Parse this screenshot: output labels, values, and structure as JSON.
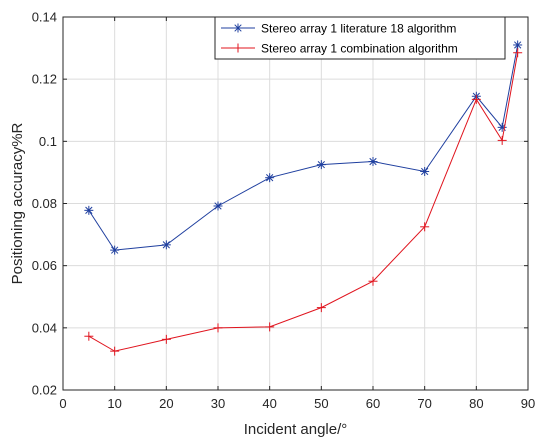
{
  "chart_data": {
    "type": "line",
    "xlabel": "Incident angle/°",
    "ylabel": "Positioning accuracy%R",
    "xlim": [
      0,
      90
    ],
    "ylim": [
      0.02,
      0.14
    ],
    "xticks": [
      "0",
      "10",
      "20",
      "30",
      "40",
      "50",
      "60",
      "70",
      "80",
      "90"
    ],
    "yticks": [
      "0.02",
      "0.04",
      "0.06",
      "0.08",
      "0.1",
      "0.12",
      "0.14"
    ],
    "grid": true,
    "legend_position": "top-right",
    "x": [
      5,
      10,
      20,
      30,
      40,
      50,
      60,
      70,
      80,
      85,
      88
    ],
    "series": [
      {
        "name": "Stereo array 1 literature 18 algorithm",
        "color": "#1f3f9f",
        "marker": "asterisk",
        "values": [
          0.0778,
          0.065,
          0.0667,
          0.0792,
          0.0883,
          0.0925,
          0.0935,
          0.0903,
          0.1145,
          0.1045,
          0.131
        ]
      },
      {
        "name": "Stereo array 1 combination algorithm",
        "color": "#e0141e",
        "marker": "plus",
        "values": [
          0.0373,
          0.0325,
          0.0363,
          0.04,
          0.0403,
          0.0465,
          0.055,
          0.0725,
          0.1135,
          0.1003,
          0.1285
        ]
      }
    ]
  }
}
